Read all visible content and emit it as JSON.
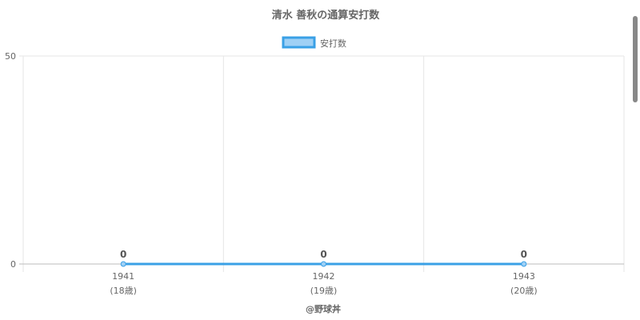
{
  "chart_data": {
    "type": "line",
    "title": "清水 善秋の通算安打数",
    "categories": [
      "1941",
      "1942",
      "1943"
    ],
    "category_sublabels": [
      "(18歳)",
      "(19歳)",
      "(20歳)"
    ],
    "series": [
      {
        "name": "安打数",
        "values": [
          0,
          0,
          0
        ],
        "color": "#3aa0e6",
        "fill": "#9fd0f5"
      }
    ],
    "yticks": [
      "0",
      "50"
    ],
    "ylim": [
      0,
      50
    ],
    "grid": true,
    "legend": "top",
    "data_labels": true
  },
  "footer": "@野球丼"
}
